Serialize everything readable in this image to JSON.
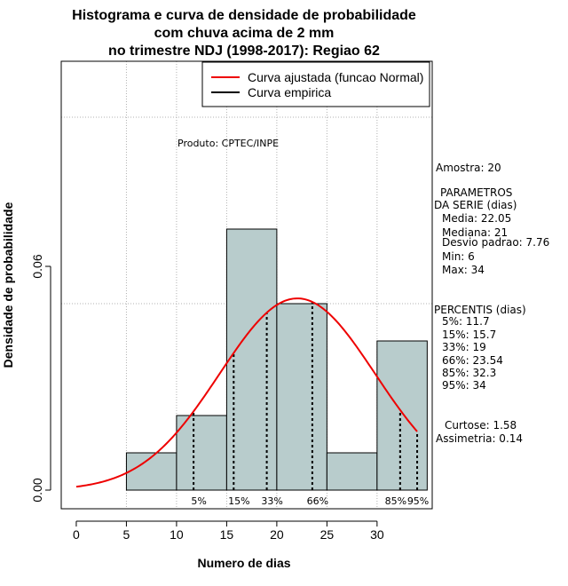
{
  "chart_data": {
    "type": "bar",
    "title_lines": [
      "Histograma e curva de densidade de probabilidade",
      "com chuva acima de 2 mm",
      "no trimestre NDJ (1998-2017): Regiao 62"
    ],
    "xlabel": "Numero de dias",
    "ylabel": "Densidade de probabilidade",
    "xlim": [
      -1.5,
      35.5
    ],
    "ylim": [
      -0.005,
      0.115
    ],
    "x_ticks": [
      0,
      5,
      10,
      15,
      20,
      25,
      30
    ],
    "y_ticks": [
      0.0,
      0.06
    ],
    "y_tick_labels": [
      "0.00",
      "0.06"
    ],
    "grid_x": [
      5,
      10,
      15,
      20,
      25,
      30
    ],
    "grid_y": [
      0.05,
      0.1
    ],
    "histogram": {
      "bin_edges": [
        5,
        10,
        15,
        20,
        25,
        30,
        35
      ],
      "densities": [
        0.01,
        0.02,
        0.07,
        0.05,
        0.01,
        0.04
      ],
      "fill": "#b8cccc"
    },
    "normal_curve": {
      "name": "Curva ajustada (funcao Normal)",
      "mean": 22.05,
      "sd": 7.76,
      "x_range": [
        0,
        34
      ],
      "color": "#ee0000"
    },
    "empirical_curve": {
      "name": "Curva empirica",
      "color": "#000000"
    },
    "percentiles": [
      {
        "label": "5%",
        "value": 11.7
      },
      {
        "label": "15%",
        "value": 15.7
      },
      {
        "label": "33%",
        "value": 19
      },
      {
        "label": "66%",
        "value": 23.54
      },
      {
        "label": "85%",
        "value": 32.3
      },
      {
        "label": "95%",
        "value": 34
      }
    ],
    "legend_position": "top-right",
    "product_note": "Produto: CPTEC/INPE"
  },
  "side_panel": {
    "sample": "Amostra: 20",
    "params_title_1": "PARAMETROS",
    "params_title_2": "DA SERIE (dias)",
    "params": [
      "Media: 22.05",
      "Mediana: 21",
      "Desvio padrao: 7.76",
      "Min: 6",
      "Max: 34"
    ],
    "percentiles_title": "PERCENTIS (dias)",
    "percentiles": [
      "5%: 11.7",
      "15%: 15.7",
      "33%: 19",
      "66%: 23.54",
      "85%: 32.3",
      "95%: 34"
    ],
    "kurtosis": "Curtose: 1.58",
    "skewness": "Assimetria: 0.14"
  }
}
